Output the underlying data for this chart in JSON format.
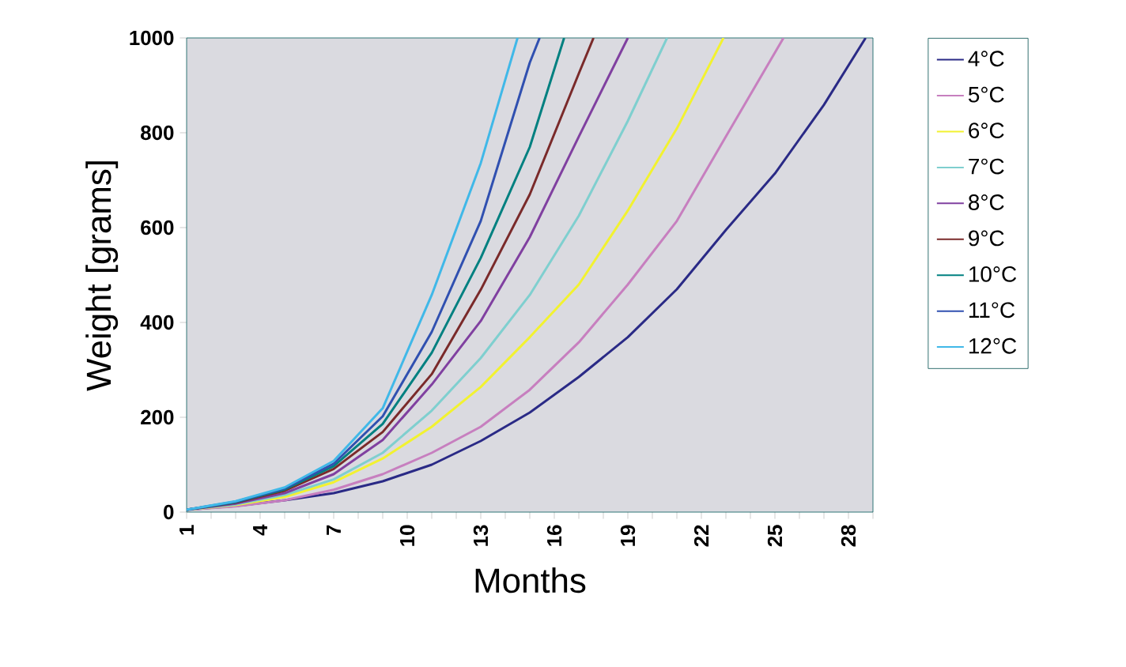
{
  "chart_data": {
    "type": "line",
    "xlabel": "Months",
    "ylabel": "Weight [grams]",
    "xlim": [
      1,
      29
    ],
    "ylim": [
      0,
      1000
    ],
    "xticks": [
      1,
      {
        "value": 2,
        "label": null
      },
      {
        "value": 3,
        "label": null
      },
      4,
      {
        "value": 5,
        "label": null
      },
      {
        "value": 6,
        "label": null
      },
      7,
      {
        "value": 8,
        "label": null
      },
      {
        "value": 9,
        "label": null
      },
      10,
      {
        "value": 11,
        "label": null
      },
      {
        "value": 12,
        "label": null
      },
      13,
      {
        "value": 14,
        "label": null
      },
      {
        "value": 15,
        "label": null
      },
      16,
      {
        "value": 17,
        "label": null
      },
      {
        "value": 18,
        "label": null
      },
      19,
      {
        "value": 20,
        "label": null
      },
      {
        "value": 21,
        "label": null
      },
      22,
      {
        "value": 23,
        "label": null
      },
      {
        "value": 24,
        "label": null
      },
      25,
      {
        "value": 26,
        "label": null
      },
      {
        "value": 27,
        "label": null
      },
      28,
      {
        "value": 29,
        "label": null
      }
    ],
    "yticks": [
      0,
      200,
      400,
      600,
      800,
      1000
    ],
    "grid": false,
    "legend": "right",
    "marker": "none",
    "line_style": "solid",
    "series": [
      {
        "name": "4°C",
        "color": "#2a2a86",
        "x": [
          1,
          3,
          5,
          7,
          9,
          11,
          13,
          15,
          17,
          19,
          21,
          23,
          25,
          27,
          28.7
        ],
        "values": [
          5,
          13,
          25,
          40,
          65,
          100,
          150,
          210,
          285,
          369,
          470,
          595,
          714,
          859,
          1000
        ]
      },
      {
        "name": "5°C",
        "color": "#c77fbf",
        "x": [
          1,
          3,
          5,
          7,
          9,
          11,
          13,
          15,
          17,
          19,
          21,
          23,
          25.35
        ],
        "values": [
          5,
          12,
          25,
          47,
          80,
          125,
          180,
          258,
          358,
          480,
          614,
          792,
          1000
        ]
      },
      {
        "name": "6°C",
        "color": "#f2f230",
        "x": [
          1,
          3,
          5,
          7,
          9,
          11,
          13,
          15,
          17,
          19,
          21,
          22.9
        ],
        "values": [
          5,
          15,
          32,
          63,
          113,
          180,
          264,
          369,
          480,
          636,
          809,
          1000
        ]
      },
      {
        "name": "7°C",
        "color": "#7fcfcf",
        "x": [
          1,
          3,
          5,
          7,
          9,
          11,
          13,
          15,
          17,
          19,
          20.6
        ],
        "values": [
          5,
          16,
          36,
          69,
          125,
          214,
          325,
          458,
          625,
          825,
          1000
        ]
      },
      {
        "name": "8°C",
        "color": "#8040a0",
        "x": [
          1,
          3,
          5,
          7,
          9,
          11,
          13,
          15,
          17,
          19
        ],
        "values": [
          5,
          18,
          40,
          80,
          152,
          269,
          403,
          580,
          792,
          1000
        ]
      },
      {
        "name": "9°C",
        "color": "#7a2a2a",
        "x": [
          1,
          3,
          5,
          7,
          9,
          11,
          13,
          15,
          17,
          17.6
        ],
        "values": [
          5,
          20,
          45,
          91,
          169,
          291,
          469,
          670,
          925,
          1000
        ]
      },
      {
        "name": "10°C",
        "color": "#008080",
        "x": [
          1,
          3,
          5,
          7,
          9,
          11,
          13,
          15,
          16.4
        ],
        "values": [
          5,
          21,
          48,
          97,
          186,
          336,
          536,
          770,
          1000
        ]
      },
      {
        "name": "11°C",
        "color": "#3050b0",
        "x": [
          1,
          3,
          5,
          7,
          9,
          11,
          13,
          15,
          15.4
        ],
        "values": [
          5,
          22,
          50,
          102,
          202,
          380,
          614,
          948,
          1000
        ]
      },
      {
        "name": "12°C",
        "color": "#40b8e8",
        "x": [
          1,
          3,
          5,
          7,
          9,
          11,
          13,
          14.5
        ],
        "values": [
          5,
          23,
          52,
          108,
          219,
          458,
          736,
          1000
        ]
      }
    ]
  }
}
